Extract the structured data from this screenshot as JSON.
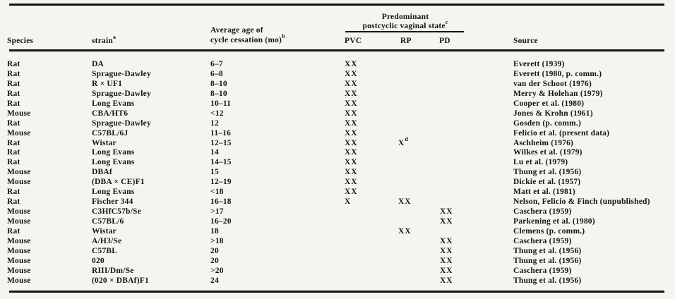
{
  "table": {
    "group_header": {
      "line1": "Predominant",
      "line2_text": "postcyclic vaginal state",
      "line2_sup": "c"
    },
    "columns": {
      "species": "Species",
      "strain_text": "strain",
      "strain_sup": "a",
      "age_line1": "Average age of",
      "age_line2_text": "cycle cessation (mo)",
      "age_line2_sup": "b",
      "pvc": "PVC",
      "rp": "RP",
      "pd": "PD",
      "source": "Source"
    },
    "rows": [
      {
        "species": "Rat",
        "strain": "DA",
        "age": "6–7",
        "pvc": "XX",
        "rp": "",
        "rp_sup": "",
        "pd": "",
        "source": "Everett (1939)"
      },
      {
        "species": "Rat",
        "strain": "Sprague-Dawley",
        "age": "6–8",
        "pvc": "XX",
        "rp": "",
        "rp_sup": "",
        "pd": "",
        "source": "Everett (1980, p. comm.)"
      },
      {
        "species": "Rat",
        "strain": "R × UF1",
        "age": "8–10",
        "pvc": "XX",
        "rp": "",
        "rp_sup": "",
        "pd": "",
        "source": "van der Schoot (1976)"
      },
      {
        "species": "Rat",
        "strain": "Sprague-Dawley",
        "age": "8–10",
        "pvc": "XX",
        "rp": "",
        "rp_sup": "",
        "pd": "",
        "source": "Merry & Holehan (1979)"
      },
      {
        "species": "Rat",
        "strain": "Long Evans",
        "age": "10–11",
        "pvc": "XX",
        "rp": "",
        "rp_sup": "",
        "pd": "",
        "source": "Cooper et al. (1980)"
      },
      {
        "species": "Mouse",
        "strain": "CBA/HT6",
        "age": "<12",
        "pvc": "XX",
        "rp": "",
        "rp_sup": "",
        "pd": "",
        "source": "Jones & Krohn (1961)"
      },
      {
        "species": "Rat",
        "strain": "Sprague-Dawley",
        "age": "12",
        "pvc": "XX",
        "rp": "",
        "rp_sup": "",
        "pd": "",
        "source": "Gosden (p. comm.)"
      },
      {
        "species": "Mouse",
        "strain": "C57BL/6J",
        "age": "11–16",
        "pvc": "XX",
        "rp": "",
        "rp_sup": "",
        "pd": "",
        "source": "Felicio et al. (present data)"
      },
      {
        "species": "Rat",
        "strain": "Wistar",
        "age": "12–15",
        "pvc": "XX",
        "rp": "X",
        "rp_sup": "d",
        "pd": "",
        "source": "Aschheim (1976)"
      },
      {
        "species": "Rat",
        "strain": "Long Evans",
        "age": "14",
        "pvc": "XX",
        "rp": "",
        "rp_sup": "",
        "pd": "",
        "source": "Wilkes et al. (1979)"
      },
      {
        "species": "Rat",
        "strain": "Long Evans",
        "age": "14–15",
        "pvc": "XX",
        "rp": "",
        "rp_sup": "",
        "pd": "",
        "source": "Lu et al. (1979)"
      },
      {
        "species": "Mouse",
        "strain": "DBAf",
        "age": "15",
        "pvc": "XX",
        "rp": "",
        "rp_sup": "",
        "pd": "",
        "source": "Thung et al. (1956)"
      },
      {
        "species": "Mouse",
        "strain": "(DBA × CE)F1",
        "age": "12–19",
        "pvc": "XX",
        "rp": "",
        "rp_sup": "",
        "pd": "",
        "source": "Dickie et al. (1957)"
      },
      {
        "species": "Rat",
        "strain": "Long Evans",
        "age": "<18",
        "pvc": "XX",
        "rp": "",
        "rp_sup": "",
        "pd": "",
        "source": "Matt et al. (1981)"
      },
      {
        "species": "Rat",
        "strain": "Fischer 344",
        "age": "16–18",
        "pvc": "X",
        "rp": "XX",
        "rp_sup": "",
        "pd": "",
        "source": "Nelson, Felicio & Finch (unpublished)"
      },
      {
        "species": "Mouse",
        "strain": "C3HfC57b/Se",
        "age": ">17",
        "pvc": "",
        "rp": "",
        "rp_sup": "",
        "pd": "XX",
        "source": "Caschera (1959)"
      },
      {
        "species": "Mouse",
        "strain": "C57BL/6",
        "age": "16–20",
        "pvc": "",
        "rp": "",
        "rp_sup": "",
        "pd": "XX",
        "source": "Parkening et al. (1980)"
      },
      {
        "species": "Rat",
        "strain": "Wistar",
        "age": "18",
        "pvc": "",
        "rp": "XX",
        "rp_sup": "",
        "pd": "",
        "source": "Clemens (p. comm.)"
      },
      {
        "species": "Mouse",
        "strain": "A/H3/Se",
        "age": ">18",
        "pvc": "",
        "rp": "",
        "rp_sup": "",
        "pd": "XX",
        "source": "Caschera (1959)"
      },
      {
        "species": "Mouse",
        "strain": "C57BL",
        "age": "20",
        "pvc": "",
        "rp": "",
        "rp_sup": "",
        "pd": "XX",
        "source": "Thung et al. (1956)"
      },
      {
        "species": "Mouse",
        "strain": "020",
        "age": "20",
        "pvc": "",
        "rp": "",
        "rp_sup": "",
        "pd": "XX",
        "source": "Thung et al. (1956)"
      },
      {
        "species": "Mouse",
        "strain": "RIII/Dm/Se",
        "age": ">20",
        "pvc": "",
        "rp": "",
        "rp_sup": "",
        "pd": "XX",
        "source": "Caschera (1959)"
      },
      {
        "species": "Mouse",
        "strain": "(020 × DBAf)F1",
        "age": "24",
        "pvc": "",
        "rp": "",
        "rp_sup": "",
        "pd": "XX",
        "source": "Thung et al. (1956)"
      }
    ]
  }
}
